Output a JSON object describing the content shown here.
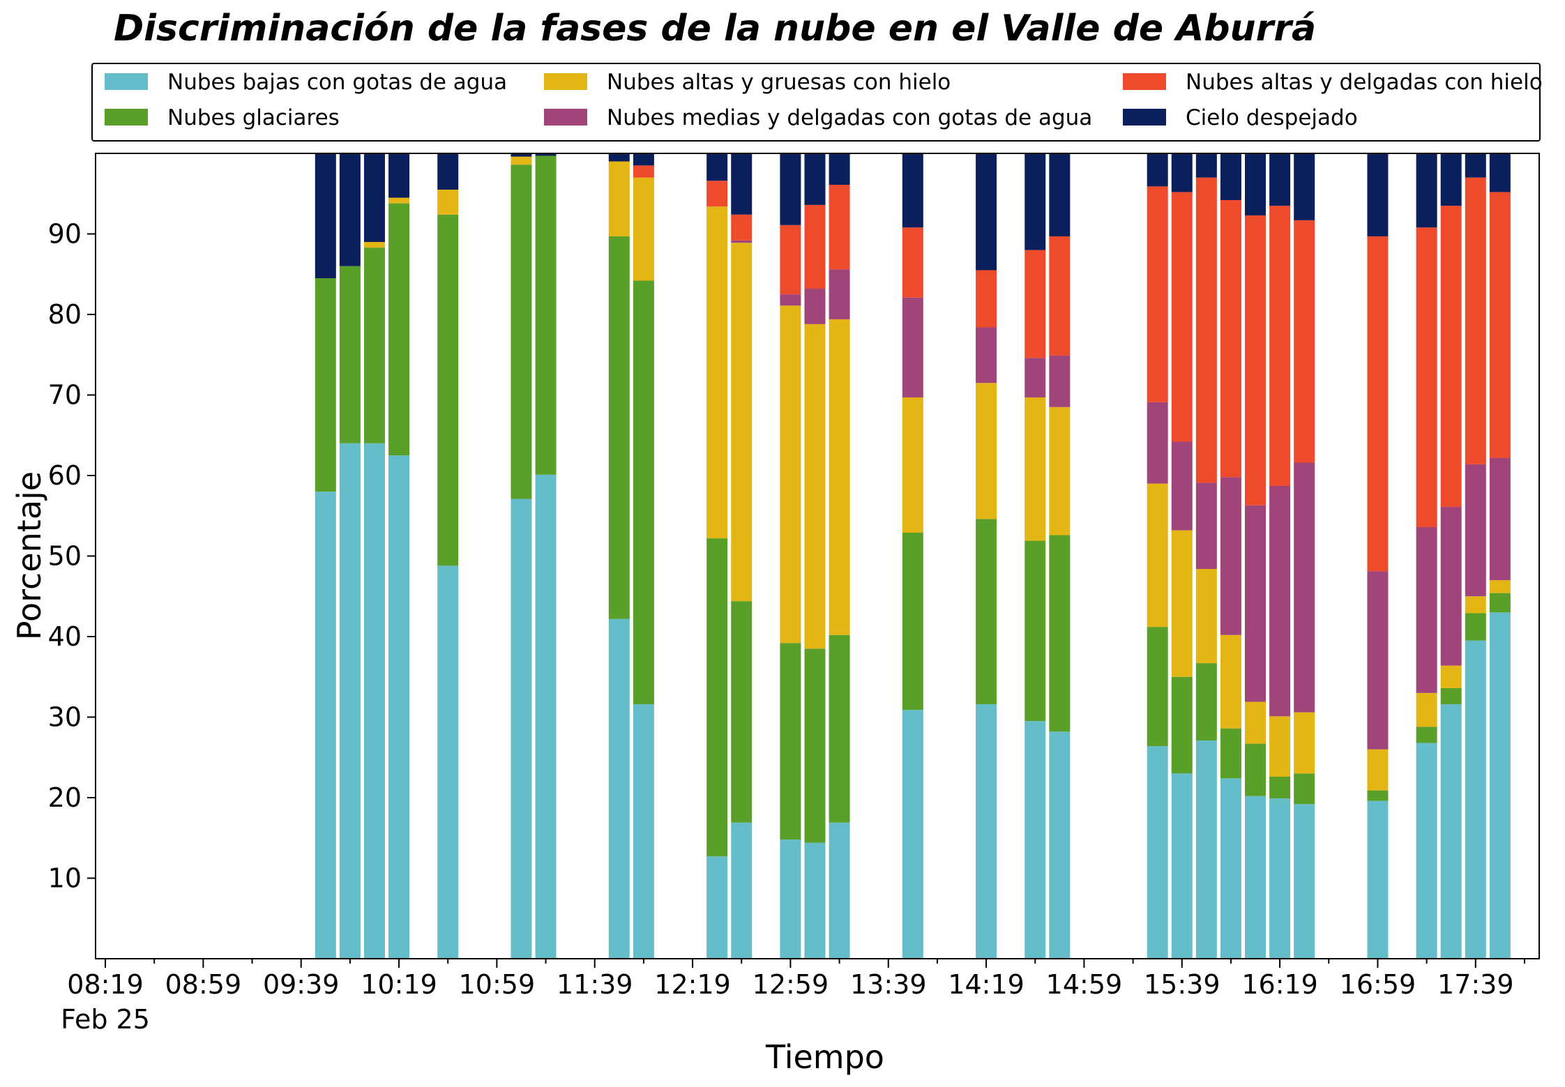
{
  "chart_data": {
    "type": "bar",
    "stacked": true,
    "title": "Discriminación de la fases de la nube en el Valle de Aburrá",
    "xlabel": "Tiempo",
    "ylabel": "Porcentaje",
    "ylim": [
      0,
      100
    ],
    "yticks": [
      10,
      20,
      30,
      40,
      50,
      60,
      70,
      80,
      90
    ],
    "xticks": [
      "08:19",
      "08:59",
      "09:39",
      "10:19",
      "10:59",
      "11:39",
      "12:19",
      "12:59",
      "13:39",
      "14:19",
      "14:59",
      "15:39",
      "16:19",
      "16:59",
      "17:39"
    ],
    "xtick_date": "Feb 25",
    "xlim_minutes": [
      495,
      1085
    ],
    "legend_position": "top",
    "legend_columns": 3,
    "series": [
      {
        "name": "Nubes bajas con gotas de agua",
        "color": "#64bdc8"
      },
      {
        "name": "Nubes glaciares",
        "color": "#5a9f2a"
      },
      {
        "name": "Nubes altas y gruesas con hielo",
        "color": "#e3b515"
      },
      {
        "name": "Nubes medias y delgadas con gotas de agua",
        "color": "#a0447a"
      },
      {
        "name": "Nubes altas y delgadas con hielo",
        "color": "#ee4a2c"
      },
      {
        "name": "Cielo despejado",
        "color": "#0b1f5c"
      }
    ],
    "bars": [
      {
        "time": "09:49",
        "values": [
          58.0,
          26.5,
          0,
          0,
          0,
          15.5
        ]
      },
      {
        "time": "09:59",
        "values": [
          64.0,
          22.0,
          0,
          0,
          0,
          14.0
        ]
      },
      {
        "time": "10:09",
        "values": [
          64.0,
          24.3,
          0.7,
          0,
          0,
          11.0
        ]
      },
      {
        "time": "10:19",
        "values": [
          62.5,
          31.3,
          0.7,
          0,
          0,
          5.5
        ]
      },
      {
        "time": "10:39",
        "values": [
          48.8,
          43.6,
          3.1,
          0,
          0,
          4.5
        ]
      },
      {
        "time": "11:09",
        "values": [
          57.1,
          41.5,
          1.0,
          0,
          0,
          0.4
        ]
      },
      {
        "time": "11:19",
        "values": [
          60.1,
          39.6,
          0,
          0,
          0,
          0.3
        ]
      },
      {
        "time": "11:49",
        "values": [
          42.2,
          47.5,
          9.3,
          0,
          0,
          1.0
        ]
      },
      {
        "time": "11:59",
        "values": [
          31.6,
          52.6,
          12.8,
          0,
          1.5,
          1.5
        ]
      },
      {
        "time": "12:29",
        "values": [
          12.7,
          39.5,
          41.2,
          0,
          3.2,
          3.4
        ]
      },
      {
        "time": "12:39",
        "values": [
          16.9,
          27.5,
          44.5,
          0.3,
          3.2,
          7.6
        ]
      },
      {
        "time": "12:59",
        "values": [
          14.8,
          24.4,
          41.9,
          1.4,
          8.6,
          8.9
        ]
      },
      {
        "time": "13:09",
        "values": [
          14.4,
          24.1,
          40.3,
          4.4,
          10.4,
          6.4
        ]
      },
      {
        "time": "13:19",
        "values": [
          16.9,
          23.3,
          39.2,
          6.2,
          10.5,
          3.9
        ]
      },
      {
        "time": "13:49",
        "values": [
          30.9,
          22.0,
          16.8,
          12.4,
          8.7,
          9.2
        ]
      },
      {
        "time": "14:19",
        "values": [
          31.6,
          23.0,
          16.9,
          6.9,
          7.1,
          14.5
        ]
      },
      {
        "time": "14:39",
        "values": [
          29.5,
          22.4,
          17.8,
          4.9,
          13.4,
          12.0
        ]
      },
      {
        "time": "14:49",
        "values": [
          28.2,
          24.4,
          15.9,
          6.4,
          14.8,
          10.3
        ]
      },
      {
        "time": "15:29",
        "values": [
          26.4,
          14.8,
          17.8,
          10.1,
          26.8,
          4.1
        ]
      },
      {
        "time": "15:39",
        "values": [
          23.0,
          12.0,
          18.2,
          11.0,
          31.0,
          4.8
        ]
      },
      {
        "time": "15:49",
        "values": [
          27.1,
          9.6,
          11.7,
          10.7,
          37.9,
          3.0
        ]
      },
      {
        "time": "15:59",
        "values": [
          22.4,
          6.2,
          11.6,
          19.6,
          34.4,
          5.8
        ]
      },
      {
        "time": "16:09",
        "values": [
          20.2,
          6.5,
          5.2,
          24.4,
          36.0,
          7.7
        ]
      },
      {
        "time": "16:19",
        "values": [
          19.9,
          2.7,
          7.5,
          28.6,
          34.8,
          6.5
        ]
      },
      {
        "time": "16:29",
        "values": [
          19.2,
          3.8,
          7.6,
          31.0,
          30.1,
          8.3
        ]
      },
      {
        "time": "16:59",
        "values": [
          19.6,
          1.3,
          5.1,
          22.1,
          41.6,
          10.3
        ]
      },
      {
        "time": "17:19",
        "values": [
          26.8,
          2.0,
          4.2,
          20.6,
          37.2,
          9.2
        ]
      },
      {
        "time": "17:29",
        "values": [
          31.6,
          2.0,
          2.8,
          19.7,
          37.4,
          6.5
        ]
      },
      {
        "time": "17:39",
        "values": [
          39.5,
          3.4,
          2.1,
          16.4,
          35.6,
          3.0
        ]
      },
      {
        "time": "17:49",
        "values": [
          43.0,
          2.4,
          1.6,
          15.2,
          33.0,
          4.8
        ]
      }
    ]
  }
}
